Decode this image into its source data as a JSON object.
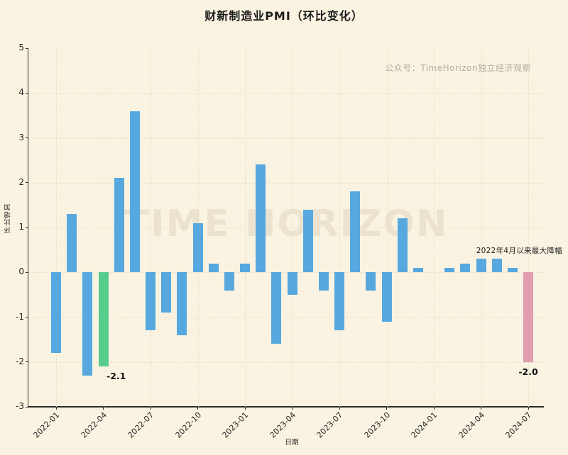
{
  "title": "财新制造业PMI（环比变化）",
  "brand_watermark": "公众号：TimeHorizon独立经济观察",
  "background_watermark": "TIME HORIZON",
  "colors": {
    "background": "#faf3e2",
    "bar_default": "#56a8de",
    "bar_green": "#56cd8a",
    "bar_pink": "#e19cb0",
    "grid": "#e6ddc5",
    "spine": "#2c2c2c",
    "text": "#262626",
    "watermark_small": "#b3ac9d",
    "watermark_big": "#ebe3cf"
  },
  "chart_data": {
    "type": "bar",
    "title": "财新制造业PMI（环比变化）",
    "xlabel": "日期",
    "ylabel": "环比增加",
    "ylim": [
      -3,
      5
    ],
    "grid": true,
    "legend": false,
    "categories": [
      "2022-01",
      "2022-02",
      "2022-03",
      "2022-04",
      "2022-05",
      "2022-06",
      "2022-07",
      "2022-08",
      "2022-09",
      "2022-10",
      "2022-11",
      "2022-12",
      "2023-01",
      "2023-02",
      "2023-03",
      "2023-04",
      "2023-05",
      "2023-06",
      "2023-07",
      "2023-08",
      "2023-09",
      "2023-10",
      "2023-11",
      "2023-12",
      "2024-01",
      "2024-02",
      "2024-03",
      "2024-04",
      "2024-05",
      "2024-06",
      "2024-07"
    ],
    "values": [
      -1.8,
      1.3,
      -2.3,
      -2.1,
      2.1,
      3.6,
      -1.3,
      -0.9,
      -1.4,
      1.1,
      0.2,
      -0.4,
      0.2,
      2.4,
      -1.6,
      -0.5,
      1.4,
      -0.4,
      -1.3,
      1.8,
      -0.4,
      -1.1,
      1.2,
      0.1,
      0.0,
      0.1,
      0.2,
      0.3,
      0.3,
      0.1,
      -2.0
    ],
    "y_ticks": [
      -3,
      -2,
      -1,
      0,
      1,
      2,
      3,
      4,
      5
    ],
    "x_tick_labels": [
      "2022-01",
      "2022-04",
      "2022-07",
      "2022-10",
      "2023-01",
      "2023-04",
      "2023-07",
      "2023-10",
      "2024-01",
      "2024-04",
      "2024-07"
    ],
    "highlights": [
      {
        "index": 3,
        "category": "2022-04",
        "color": "bar_green",
        "label": "-2.1"
      },
      {
        "index": 30,
        "category": "2024-07",
        "color": "bar_pink",
        "label": "-2.0",
        "note": "2022年4月以来最大降幅"
      }
    ]
  }
}
